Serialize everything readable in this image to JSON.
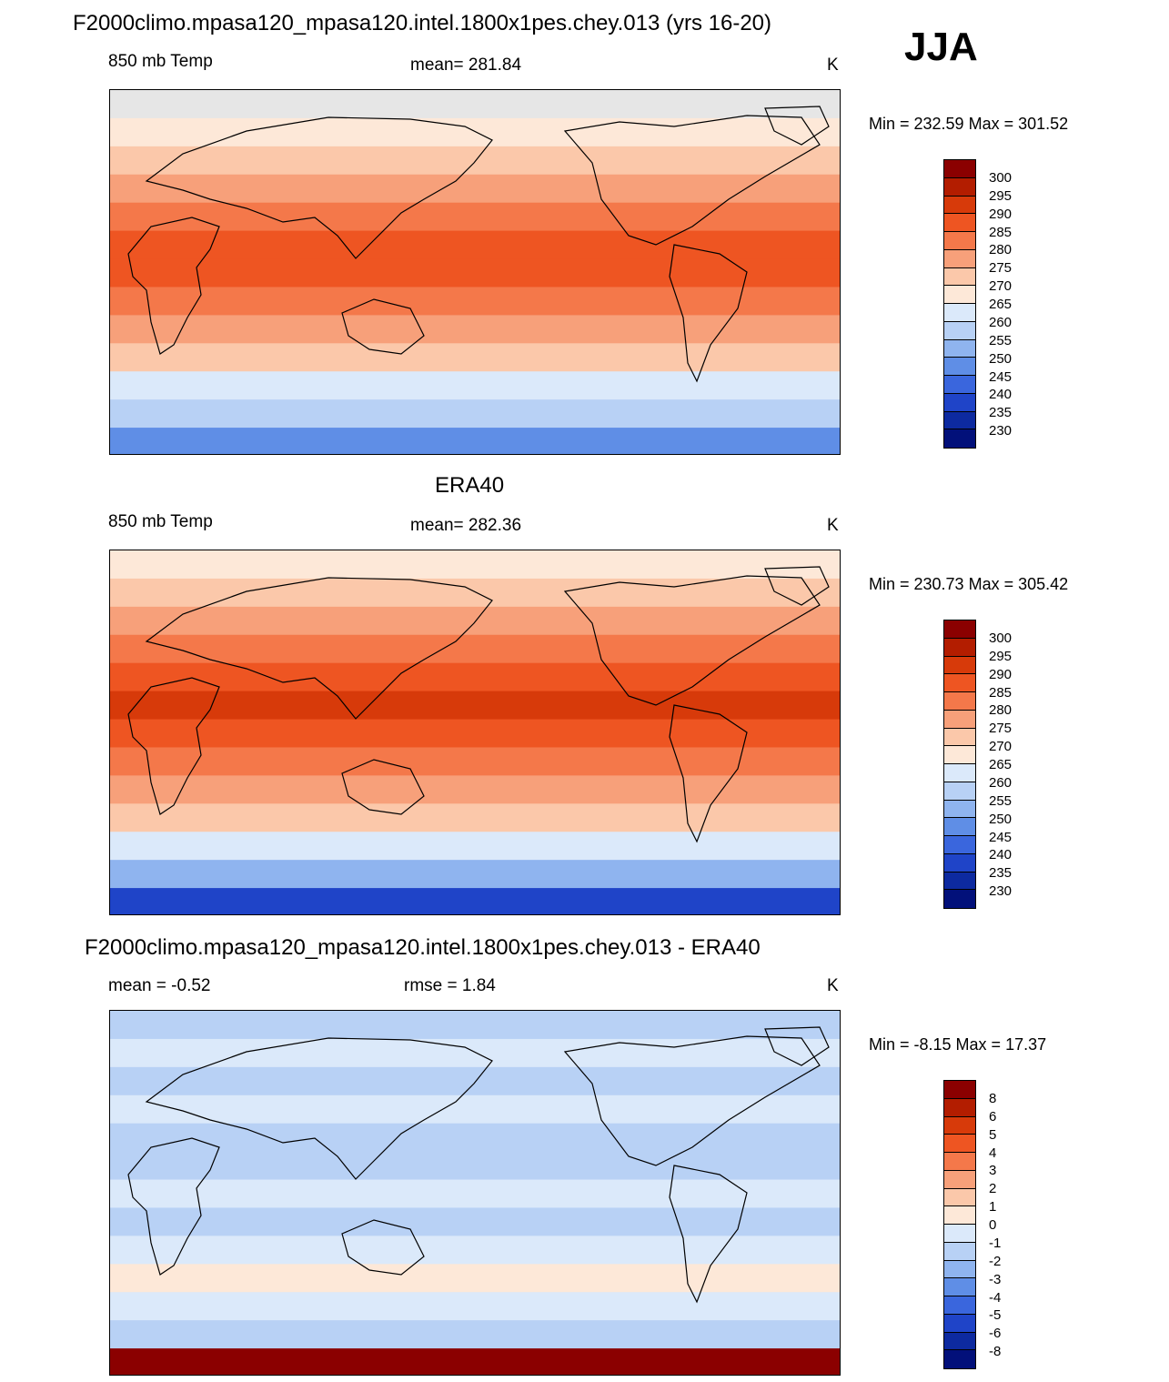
{
  "header": {
    "title": "F2000climo.mpasa120_mpasa120.intel.1800x1pes.chey.013 (yrs 16-20)",
    "season": "JJA"
  },
  "panels": [
    {
      "id": "model",
      "title": "",
      "left_label": "850 mb Temp",
      "center_label": "mean= 281.84",
      "units": "K",
      "minmax": "Min = 232.59 Max = 301.52",
      "colorbar": {
        "labels": [
          "300",
          "295",
          "290",
          "285",
          "280",
          "275",
          "270",
          "265",
          "260",
          "255",
          "250",
          "245",
          "240",
          "235",
          "230"
        ],
        "colors": [
          "#8b0000",
          "#b31d00",
          "#d73a0a",
          "#ee5522",
          "#f4784a",
          "#f7a07a",
          "#fbc8aa",
          "#fde8d8",
          "#dbe9fa",
          "#b8d1f5",
          "#8fb4ef",
          "#5f8ee6",
          "#3a66dd",
          "#1f44c8",
          "#0d2aa0",
          "#02107a"
        ]
      },
      "bands": [
        "#e6e6e6",
        "#fde8d8",
        "#fbc8aa",
        "#f7a07a",
        "#f4784a",
        "#ee5522",
        "#ee5522",
        "#f4784a",
        "#f7a07a",
        "#fbc8aa",
        "#dbe9fa",
        "#b8d1f5",
        "#5f8ee6"
      ]
    },
    {
      "id": "obs",
      "title": "ERA40",
      "left_label": "850 mb Temp",
      "center_label": "mean= 282.36",
      "units": "K",
      "minmax": "Min = 230.73 Max = 305.42",
      "colorbar": {
        "labels": [
          "300",
          "295",
          "290",
          "285",
          "280",
          "275",
          "270",
          "265",
          "260",
          "255",
          "250",
          "245",
          "240",
          "235",
          "230"
        ],
        "colors": [
          "#8b0000",
          "#b31d00",
          "#d73a0a",
          "#ee5522",
          "#f4784a",
          "#f7a07a",
          "#fbc8aa",
          "#fde8d8",
          "#dbe9fa",
          "#b8d1f5",
          "#8fb4ef",
          "#5f8ee6",
          "#3a66dd",
          "#1f44c8",
          "#0d2aa0",
          "#02107a"
        ]
      },
      "bands": [
        "#fde8d8",
        "#fbc8aa",
        "#f7a07a",
        "#f4784a",
        "#ee5522",
        "#d73a0a",
        "#ee5522",
        "#f4784a",
        "#f7a07a",
        "#fbc8aa",
        "#dbe9fa",
        "#8fb4ef",
        "#1f44c8"
      ]
    },
    {
      "id": "diff",
      "title": "F2000climo.mpasa120_mpasa120.intel.1800x1pes.chey.013 - ERA40",
      "left_label": "mean =  -0.52",
      "center_label": "rmse =   1.84",
      "units": "K",
      "minmax": "Min =  -8.15 Max =  17.37",
      "colorbar": {
        "labels": [
          "8",
          "6",
          "5",
          "4",
          "3",
          "2",
          "1",
          "0",
          "-1",
          "-2",
          "-3",
          "-4",
          "-5",
          "-6",
          "-8"
        ],
        "colors": [
          "#8b0000",
          "#b31d00",
          "#d73a0a",
          "#ee5522",
          "#f4784a",
          "#f7a07a",
          "#fbc8aa",
          "#fde8d8",
          "#dbe9fa",
          "#b8d1f5",
          "#8fb4ef",
          "#5f8ee6",
          "#3a66dd",
          "#1f44c8",
          "#0d2aa0",
          "#02107a"
        ]
      },
      "bands": [
        "#b8d1f5",
        "#dbe9fa",
        "#b8d1f5",
        "#dbe9fa",
        "#b8d1f5",
        "#b8d1f5",
        "#dbe9fa",
        "#b8d1f5",
        "#dbe9fa",
        "#fde8d8",
        "#dbe9fa",
        "#b8d1f5",
        "#8b0000"
      ]
    }
  ]
}
